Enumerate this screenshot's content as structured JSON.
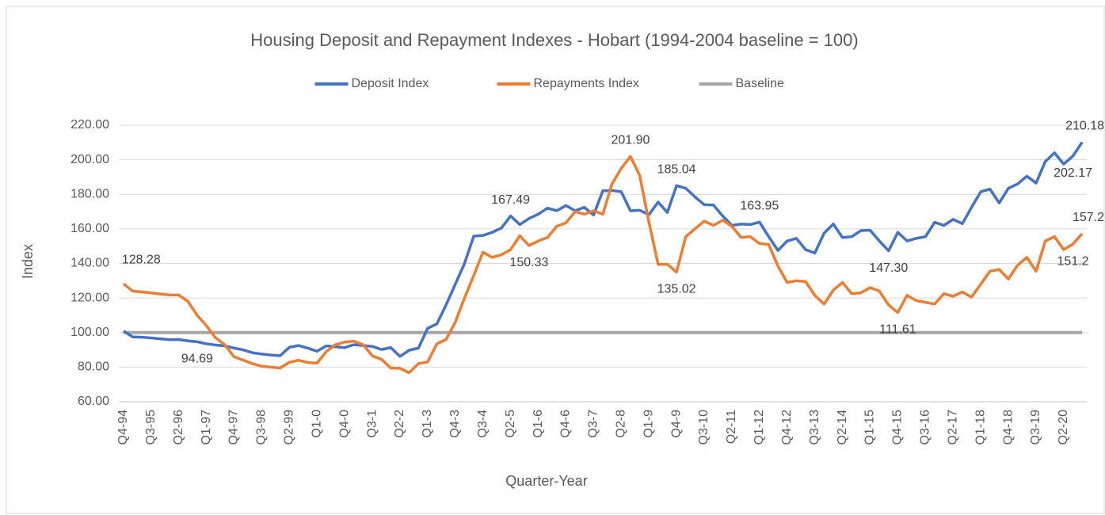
{
  "chart_data": {
    "type": "line",
    "title": "Housing Deposit and Repayment Indexes - Hobart (1994-2004 baseline = 100)",
    "xlabel": "Quarter-Year",
    "ylabel": "Index",
    "categories": [
      "Q4-94",
      null,
      null,
      "Q3-95",
      null,
      null,
      "Q2-96",
      null,
      null,
      "Q1-97",
      null,
      null,
      "Q4-97",
      null,
      null,
      "Q3-98",
      null,
      null,
      "Q2-99",
      null,
      null,
      "Q1-0",
      null,
      null,
      "Q4-0",
      null,
      null,
      "Q3-1",
      null,
      null,
      "Q2-2",
      null,
      null,
      "Q1-3",
      null,
      null,
      "Q4-3",
      null,
      null,
      "Q3-4",
      null,
      null,
      "Q2-5",
      null,
      null,
      "Q1-6",
      null,
      null,
      "Q4-6",
      null,
      null,
      "Q3-7",
      null,
      null,
      "Q2-8",
      null,
      null,
      "Q1-9",
      null,
      null,
      "Q4-9",
      null,
      null,
      "Q3-10",
      null,
      null,
      "Q2-11",
      null,
      null,
      "Q1-12",
      null,
      null,
      "Q4-12",
      null,
      null,
      "Q3-13",
      null,
      null,
      "Q2-14",
      null,
      null,
      "Q1-15",
      null,
      null,
      "Q4-15",
      null,
      null,
      "Q3-16",
      null,
      null,
      "Q2-17",
      null,
      null,
      "Q1-18",
      null,
      null,
      "Q4-18",
      null,
      null,
      "Q3-19",
      null,
      null,
      "Q2-20",
      null,
      null
    ],
    "series": [
      {
        "name": "Deposit Index",
        "color": "#4472c4",
        "values": [
          100.9,
          97.5,
          97.3,
          96.9,
          96.4,
          95.9,
          96.0,
          95.2,
          94.69,
          93.5,
          92.8,
          92.3,
          91.0,
          90.0,
          88.3,
          87.6,
          87.0,
          86.6,
          91.5,
          92.5,
          91.0,
          89.2,
          92.3,
          91.8,
          91.3,
          93.0,
          92.5,
          92.0,
          90.2,
          91.3,
          86.2,
          89.8,
          91.0,
          102.5,
          105.0,
          116.0,
          128.0,
          140.0,
          155.8,
          156.2,
          158.0,
          160.5,
          167.49,
          162.5,
          166.0,
          168.5,
          172.0,
          170.5,
          173.5,
          170.5,
          172.5,
          168.0,
          182.0,
          182.2,
          181.5,
          170.5,
          170.8,
          168.2,
          175.5,
          169.5,
          185.04,
          183.5,
          178.5,
          174.0,
          173.8,
          167.5,
          162.0,
          162.8,
          162.5,
          163.95,
          155.5,
          147.5,
          153.0,
          154.5,
          148.0,
          146.0,
          157.5,
          162.8,
          155.0,
          155.5,
          159.0,
          159.2,
          153.0,
          147.3,
          158.0,
          153.0,
          154.5,
          155.5,
          163.8,
          162.0,
          165.5,
          163.0,
          172.5,
          181.5,
          183.0,
          175.0,
          183.5,
          186.0,
          190.5,
          186.5,
          199.0,
          204.0,
          197.5,
          202.17,
          210.18
        ],
        "value_labels": [
          null,
          null,
          null,
          null,
          null,
          null,
          null,
          null,
          "94.69",
          null,
          null,
          null,
          null,
          null,
          null,
          null,
          null,
          null,
          null,
          null,
          null,
          null,
          null,
          null,
          null,
          null,
          null,
          null,
          null,
          null,
          null,
          null,
          null,
          null,
          null,
          null,
          null,
          null,
          null,
          null,
          null,
          null,
          "167.49",
          null,
          null,
          null,
          null,
          null,
          null,
          null,
          null,
          null,
          null,
          null,
          null,
          null,
          null,
          null,
          null,
          null,
          "185.04",
          null,
          null,
          null,
          null,
          null,
          null,
          null,
          null,
          "163.95",
          null,
          null,
          null,
          null,
          null,
          null,
          null,
          null,
          null,
          null,
          null,
          null,
          null,
          "147.30",
          null,
          null,
          null,
          null,
          null,
          null,
          null,
          null,
          null,
          null,
          null,
          null,
          null,
          null,
          null,
          null,
          null,
          null,
          null,
          "202.17",
          "210.18"
        ]
      },
      {
        "name": "Repayments Index",
        "color": "#ed7d31",
        "values": [
          128.28,
          124.0,
          123.5,
          123.0,
          122.3,
          121.8,
          121.7,
          118.0,
          110.0,
          104.0,
          97.0,
          93.0,
          86.0,
          84.0,
          82.0,
          80.5,
          80.0,
          79.5,
          82.8,
          84.0,
          82.7,
          82.3,
          89.0,
          93.0,
          94.5,
          95.0,
          93.0,
          86.5,
          84.5,
          79.5,
          79.3,
          76.8,
          82.0,
          83.0,
          93.5,
          96.0,
          106.0,
          120.0,
          133.0,
          146.5,
          143.5,
          145.0,
          148.0,
          156.0,
          150.33,
          153.0,
          155.0,
          161.5,
          163.5,
          170.0,
          168.5,
          170.5,
          168.5,
          186.0,
          195.0,
          201.9,
          191.0,
          164.0,
          139.5,
          139.5,
          135.02,
          155.5,
          160.0,
          164.5,
          162.0,
          165.0,
          161.5,
          155.0,
          155.5,
          151.5,
          151.0,
          138.5,
          129.0,
          130.0,
          129.5,
          121.5,
          116.5,
          124.5,
          129.0,
          122.5,
          123.0,
          126.0,
          124.0,
          116.0,
          111.61,
          121.5,
          118.5,
          117.5,
          116.5,
          122.5,
          121.0,
          123.5,
          120.5,
          128.0,
          135.5,
          136.5,
          131.0,
          139.0,
          143.5,
          135.5,
          153.0,
          155.5,
          148.0,
          151.2,
          157.2
        ],
        "value_labels": [
          "128.28",
          null,
          null,
          null,
          null,
          null,
          null,
          null,
          null,
          null,
          null,
          null,
          null,
          null,
          null,
          null,
          null,
          null,
          null,
          null,
          null,
          null,
          null,
          null,
          null,
          null,
          null,
          null,
          null,
          null,
          null,
          null,
          null,
          null,
          null,
          null,
          null,
          null,
          null,
          null,
          null,
          null,
          null,
          null,
          "150.33",
          null,
          null,
          null,
          null,
          null,
          null,
          null,
          null,
          null,
          null,
          "201.90",
          null,
          null,
          null,
          null,
          "135.02",
          null,
          null,
          null,
          null,
          null,
          null,
          null,
          null,
          null,
          null,
          null,
          null,
          null,
          null,
          null,
          null,
          null,
          null,
          null,
          null,
          null,
          null,
          null,
          "111.61",
          null,
          null,
          null,
          null,
          null,
          null,
          null,
          null,
          null,
          null,
          null,
          null,
          null,
          null,
          null,
          null,
          null,
          null,
          "151.2",
          "157.2"
        ]
      },
      {
        "name": "Baseline",
        "color": "#a5a5a5",
        "values": [
          100,
          100,
          100,
          100,
          100,
          100,
          100,
          100,
          100,
          100,
          100,
          100,
          100,
          100,
          100,
          100,
          100,
          100,
          100,
          100,
          100,
          100,
          100,
          100,
          100,
          100,
          100,
          100,
          100,
          100,
          100,
          100,
          100,
          100,
          100,
          100,
          100,
          100,
          100,
          100,
          100,
          100,
          100,
          100,
          100,
          100,
          100,
          100,
          100,
          100,
          100,
          100,
          100,
          100,
          100,
          100,
          100,
          100,
          100,
          100,
          100,
          100,
          100,
          100,
          100,
          100,
          100,
          100,
          100,
          100,
          100,
          100,
          100,
          100,
          100,
          100,
          100,
          100,
          100,
          100,
          100,
          100,
          100,
          100,
          100,
          100,
          100,
          100,
          100,
          100,
          100,
          100,
          100,
          100,
          100,
          100,
          100,
          100,
          100,
          100,
          100,
          100,
          100,
          100,
          100
        ]
      }
    ],
    "ylim": [
      60,
      220
    ],
    "yticks": [
      {
        "value": 60,
        "label": "60.00"
      },
      {
        "value": 80,
        "label": "80.00"
      },
      {
        "value": 100,
        "label": "100.00"
      },
      {
        "value": 120,
        "label": "120.00"
      },
      {
        "value": 140,
        "label": "140.00"
      },
      {
        "value": 160,
        "label": "160.00"
      },
      {
        "value": 180,
        "label": "180.00"
      },
      {
        "value": 200,
        "label": "200.00"
      },
      {
        "value": 220,
        "label": "220.00"
      }
    ],
    "grid": true,
    "legend": "top"
  }
}
